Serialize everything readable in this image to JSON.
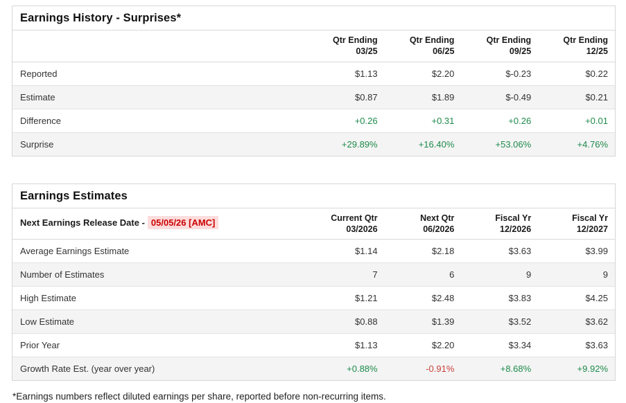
{
  "colors": {
    "positive_green": "#1e8a4c",
    "negative_red": "#c9413d",
    "release_date_red": "#cc0000",
    "release_date_bg": "#fcdcdc",
    "alt_row_bg": "#f4f4f4",
    "border": "#d6d6d6"
  },
  "earnings_history": {
    "title": "Earnings History - Surprises*",
    "columns": [
      {
        "line1": "Qtr Ending",
        "line2": "03/25"
      },
      {
        "line1": "Qtr Ending",
        "line2": "06/25"
      },
      {
        "line1": "Qtr Ending",
        "line2": "09/25"
      },
      {
        "line1": "Qtr Ending",
        "line2": "12/25"
      }
    ],
    "rows": [
      {
        "label": "Reported",
        "values": [
          "$1.13",
          "$2.20",
          "$-0.23",
          "$0.22"
        ],
        "colors": [
          "",
          "",
          "",
          ""
        ]
      },
      {
        "label": "Estimate",
        "values": [
          "$0.87",
          "$1.89",
          "$-0.49",
          "$0.21"
        ],
        "colors": [
          "",
          "",
          "",
          ""
        ]
      },
      {
        "label": "Difference",
        "values": [
          "+0.26",
          "+0.31",
          "+0.26",
          "+0.01"
        ],
        "colors": [
          "green",
          "green",
          "green",
          "green"
        ]
      },
      {
        "label": "Surprise",
        "values": [
          "+29.89%",
          "+16.40%",
          "+53.06%",
          "+4.76%"
        ],
        "colors": [
          "green",
          "green",
          "green",
          "green"
        ]
      }
    ]
  },
  "earnings_estimates": {
    "title": "Earnings Estimates",
    "release_label": "Next Earnings Release Date -",
    "release_date": "05/05/26 [AMC]",
    "columns": [
      {
        "line1": "Current Qtr",
        "line2": "03/2026"
      },
      {
        "line1": "Next Qtr",
        "line2": "06/2026"
      },
      {
        "line1": "Fiscal Yr",
        "line2": "12/2026"
      },
      {
        "line1": "Fiscal Yr",
        "line2": "12/2027"
      }
    ],
    "rows": [
      {
        "label": "Average Earnings Estimate",
        "values": [
          "$1.14",
          "$2.18",
          "$3.63",
          "$3.99"
        ],
        "colors": [
          "",
          "",
          "",
          ""
        ]
      },
      {
        "label": "Number of Estimates",
        "values": [
          "7",
          "6",
          "9",
          "9"
        ],
        "colors": [
          "",
          "",
          "",
          ""
        ]
      },
      {
        "label": "High Estimate",
        "values": [
          "$1.21",
          "$2.48",
          "$3.83",
          "$4.25"
        ],
        "colors": [
          "",
          "",
          "",
          ""
        ]
      },
      {
        "label": "Low Estimate",
        "values": [
          "$0.88",
          "$1.39",
          "$3.52",
          "$3.62"
        ],
        "colors": [
          "",
          "",
          "",
          ""
        ]
      },
      {
        "label": "Prior Year",
        "values": [
          "$1.13",
          "$2.20",
          "$3.34",
          "$3.63"
        ],
        "colors": [
          "",
          "",
          "",
          ""
        ]
      },
      {
        "label": "Growth Rate Est. (year over year)",
        "values": [
          "+0.88%",
          "-0.91%",
          "+8.68%",
          "+9.92%"
        ],
        "colors": [
          "green",
          "red",
          "green",
          "green"
        ]
      }
    ]
  },
  "footnote": "*Earnings numbers reflect diluted earnings per share, reported before non-recurring items."
}
